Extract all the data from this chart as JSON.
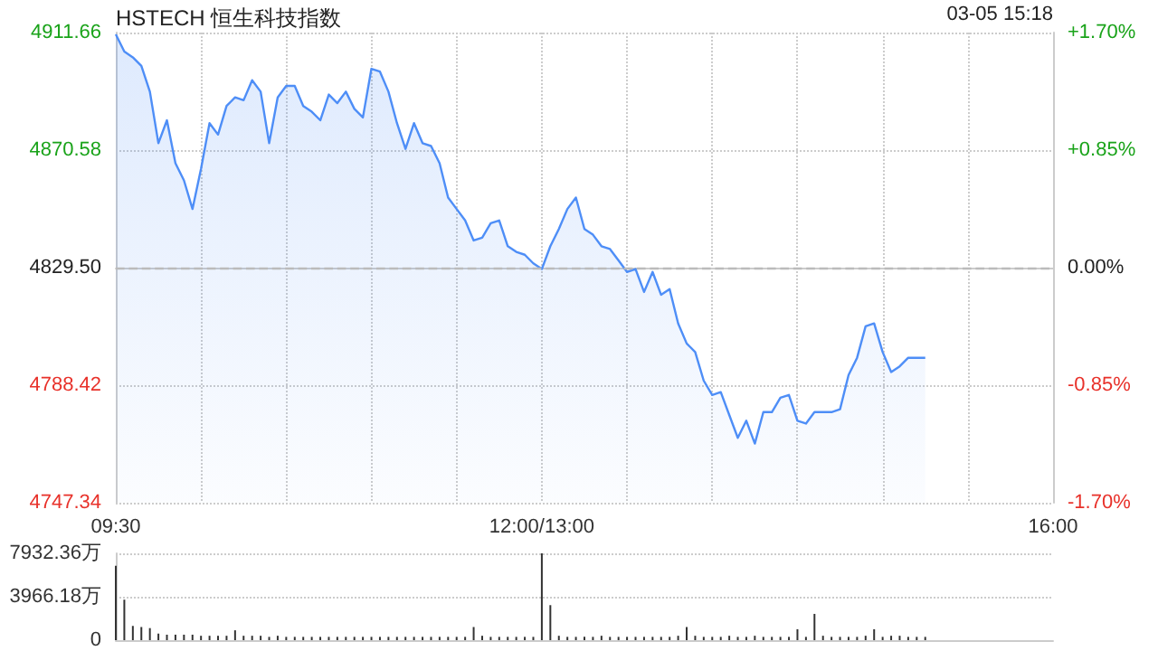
{
  "chart_data": [
    {
      "type": "area",
      "title": "HSTECH 恒生科技指数",
      "annotations": [
        "03-05 15:18"
      ],
      "categories": [
        "09:30",
        null,
        null,
        null,
        null,
        null,
        null,
        null,
        null,
        null,
        null,
        null,
        null,
        null,
        null,
        null,
        null,
        null,
        null,
        null,
        null,
        null,
        null,
        null,
        null,
        null,
        null,
        null,
        null,
        null,
        null,
        null,
        null,
        null,
        null,
        null,
        null,
        null,
        null,
        null,
        null,
        null,
        null,
        null,
        null,
        null,
        null,
        null,
        null,
        null,
        "12:00/13:00",
        null,
        null,
        null,
        null,
        null,
        null,
        null,
        null,
        null,
        null,
        null,
        null,
        null,
        null,
        null,
        null,
        null,
        null,
        null,
        null,
        null,
        null,
        null,
        null,
        null,
        null,
        null,
        null,
        null,
        null,
        null,
        null,
        null,
        null,
        null,
        null,
        null,
        null,
        null,
        null,
        null,
        null,
        null,
        null,
        null,
        null,
        null,
        null,
        null,
        null,
        null,
        null,
        null,
        null,
        null,
        null,
        null,
        null,
        null,
        "16:00"
      ],
      "series": [
        {
          "color": "#4e8ef7",
          "values": [
            4911,
            4905,
            4903,
            4900,
            4891,
            4873,
            4881,
            4866,
            4860,
            4850,
            4864,
            4880,
            4876,
            4886,
            4889,
            4888,
            4895,
            4891,
            4873,
            4889,
            4893,
            4893,
            4886,
            4884,
            4881,
            4890,
            4887,
            4891,
            4885,
            4882,
            4899,
            4898,
            4891,
            4880,
            4871,
            4880,
            4873,
            4872,
            4866,
            4854,
            4850,
            4846,
            4839,
            4840,
            4845,
            4846,
            4837,
            4835,
            4834,
            4831,
            4829,
            4837,
            4843,
            4850,
            4854,
            4843,
            4841,
            4837,
            4836,
            4832,
            4828,
            4829,
            4821,
            4828,
            4820,
            4822,
            4810,
            4803,
            4800,
            4790,
            4785,
            4786,
            4778,
            4770,
            4776,
            4768,
            4779,
            4779,
            4784,
            4785,
            4776,
            4775,
            4779,
            4779,
            4779,
            4780,
            4792,
            4798,
            4809,
            4810,
            4800,
            4793,
            4795,
            4798,
            4798,
            4798,
            null,
            null,
            null,
            null,
            null,
            null,
            null,
            null,
            null,
            null,
            null,
            null,
            null,
            null,
            null
          ]
        }
      ],
      "ylim": [
        4747.34,
        4911.66
      ],
      "yticks": [
        {
          "value": 4747.34,
          "label": "4747.34"
        },
        {
          "value": 4788.42,
          "label": "4788.42"
        },
        {
          "value": 4829.5,
          "label": "4829.50"
        },
        {
          "value": 4870.58,
          "label": "4870.58"
        },
        {
          "value": 4911.66,
          "label": "4911.66"
        }
      ],
      "y2lim": [
        -1.7,
        1.7
      ],
      "y2ticks": [
        {
          "value": -1.7,
          "label": "-1.70%"
        },
        {
          "value": -0.85,
          "label": "-0.85%"
        },
        {
          "value": 0,
          "label": "0.00%"
        },
        {
          "value": 0.85,
          "label": "+0.85%"
        },
        {
          "value": 1.7,
          "label": "+1.70%"
        }
      ],
      "ref_lines": [
        {
          "axis": "y",
          "value": 4829.5,
          "label": null,
          "color": "#bbbbbb",
          "line_style": "dashed"
        }
      ],
      "grid": true,
      "marker": "none"
    },
    {
      "type": "bar",
      "categories": [
        null,
        null,
        null,
        null,
        null,
        null,
        null,
        null,
        null,
        null,
        null,
        null,
        null,
        null,
        null,
        null,
        null,
        null,
        null,
        null,
        null,
        null,
        null,
        null,
        null,
        null,
        null,
        null,
        null,
        null,
        null,
        null,
        null,
        null,
        null,
        null,
        null,
        null,
        null,
        null,
        null,
        null,
        null,
        null,
        null,
        null,
        null,
        null,
        null,
        null,
        null,
        null,
        null,
        null,
        null,
        null,
        null,
        null,
        null,
        null,
        null,
        null,
        null,
        null,
        null,
        null,
        null,
        null,
        null,
        null,
        null,
        null,
        null,
        null,
        null,
        null,
        null,
        null,
        null,
        null,
        null,
        null,
        null,
        null,
        null,
        null,
        null,
        null,
        null,
        null,
        null,
        null,
        null,
        null,
        null,
        null,
        null,
        null,
        null,
        null,
        null,
        null,
        null,
        null,
        null,
        null,
        null,
        null,
        null,
        null,
        null
      ],
      "series": [
        {
          "color": "#333333",
          "values": [
            6800,
            3700,
            1300,
            1200,
            1100,
            600,
            500,
            500,
            500,
            500,
            400,
            400,
            400,
            400,
            900,
            400,
            400,
            400,
            300,
            400,
            300,
            300,
            300,
            300,
            300,
            300,
            300,
            300,
            300,
            300,
            300,
            300,
            300,
            300,
            300,
            300,
            300,
            300,
            300,
            300,
            300,
            300,
            1200,
            400,
            300,
            300,
            300,
            300,
            300,
            300,
            7932.36,
            3200,
            400,
            300,
            300,
            300,
            300,
            400,
            300,
            300,
            300,
            300,
            300,
            300,
            300,
            300,
            400,
            1200,
            400,
            300,
            300,
            300,
            400,
            300,
            300,
            400,
            300,
            300,
            300,
            300,
            1000,
            300,
            2400,
            400,
            300,
            300,
            300,
            300,
            400,
            1000,
            300,
            400,
            400,
            300,
            300,
            300,
            null,
            null,
            null,
            null,
            null,
            null,
            null,
            null,
            null,
            null,
            null,
            null,
            null,
            null,
            null
          ]
        }
      ],
      "ylim": [
        0,
        7932.36
      ],
      "yticks": [
        {
          "value": 0,
          "label": "0"
        },
        {
          "value": 3966.18,
          "label": "3966.18万"
        },
        {
          "value": 7932.36,
          "label": "7932.36万"
        }
      ],
      "tick_labels": "y",
      "grid": "y"
    }
  ]
}
